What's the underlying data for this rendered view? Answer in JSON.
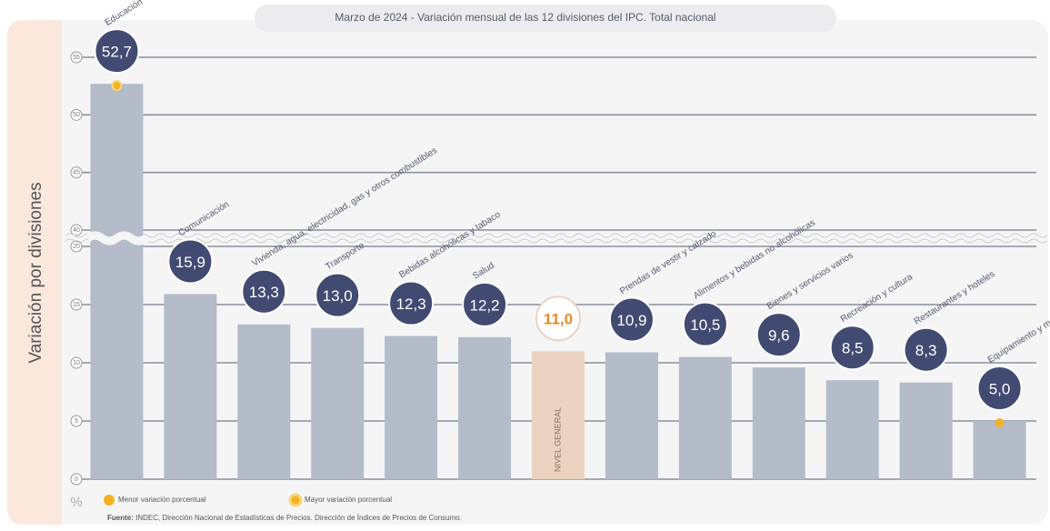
{
  "chart_data": {
    "type": "bar",
    "title": "Marzo de 2024 - Variación mensual de las 12 divisiones del IPC. Total nacional",
    "y_label": "Variación por divisiones",
    "y_unit": "%",
    "categories": [
      "Educación",
      "Comunicación",
      "Vivienda, agua, electricidad, gas y otros combustibles",
      "Transporte",
      "Bebidas alcohólicas y tabaco",
      "Salud",
      "Nivel general",
      "Prendas de vestir y calzado",
      "Alimentos y bebidas no alcohólicas",
      "Bienes y servicios varios",
      "Recreación y cultura",
      "Restaurantes y hoteles",
      "Equipamiento y mantenimiento del hogar"
    ],
    "values": [
      52.7,
      15.9,
      13.3,
      13.0,
      12.3,
      12.2,
      11.0,
      10.9,
      10.5,
      9.6,
      8.5,
      8.3,
      5.0
    ],
    "value_labels": [
      "52,7",
      "15,9",
      "13,3",
      "13,0",
      "12,3",
      "12,2",
      "11,0",
      "10,9",
      "10,5",
      "9,6",
      "8,5",
      "8,3",
      "5,0"
    ],
    "color": "#b4bbc9",
    "highlight_index": 6,
    "highlight_color": "#ecd2c0",
    "badge_color": "#414b72",
    "highlight_text_color": "#e8892b",
    "marker_color": "#f3b320",
    "ylim": [
      0,
      55
    ],
    "yticks": [
      0,
      5,
      10,
      15,
      20,
      40,
      45,
      50,
      55
    ],
    "axis_break": [
      20,
      40
    ],
    "grid": true,
    "legend": [
      "Menor variación porcentual",
      "Mayor variación porcentual"
    ],
    "source_label": "Fuente:",
    "source": "INDEC, Dirección Nacional de Estadísticas de Precios. Dirección de Índices de Precios de Consumo."
  }
}
